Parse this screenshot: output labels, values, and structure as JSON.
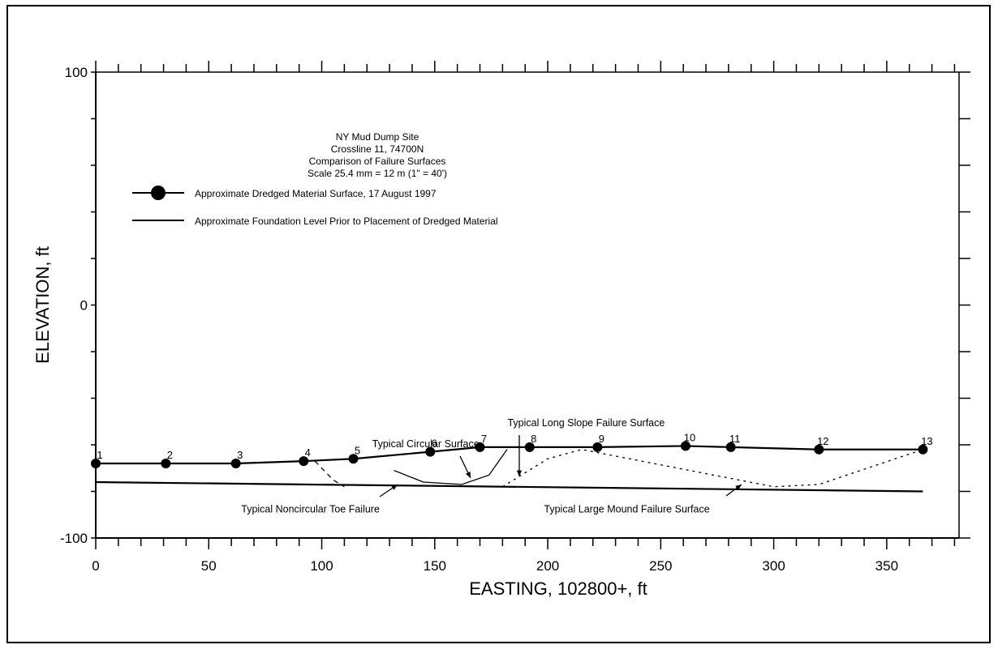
{
  "chart_data": {
    "type": "line",
    "title_lines": [
      "NY Mud Dump Site",
      "Crossline 11, 74700N",
      "Comparison of Failure Surfaces",
      "Scale 25.4 mm = 12 m (1\" = 40')"
    ],
    "xlabel": "EASTING, 102800+,  ft",
    "ylabel": "ELEVATION, ft",
    "xlim": [
      0,
      382
    ],
    "ylim": [
      -100,
      100
    ],
    "xticks": [
      0,
      50,
      100,
      150,
      200,
      250,
      300,
      350
    ],
    "yticks": [
      -100,
      0,
      100
    ],
    "grid": false,
    "legend_position": "top-left",
    "series": [
      {
        "name": "Approximate Dredged Material Surface, 17 August 1997",
        "marker": "circle",
        "point_labels": [
          "1",
          "2",
          "3",
          "4",
          "5",
          "6",
          "7",
          "8",
          "9",
          "10",
          "11",
          "12",
          "13"
        ],
        "x": [
          0,
          31,
          62,
          92,
          114,
          148,
          170,
          192,
          222,
          261,
          281,
          320,
          366
        ],
        "y": [
          -68,
          -68,
          -68,
          -67,
          -66,
          -63,
          -61,
          -61,
          -61,
          -60.5,
          -61,
          -62,
          -62
        ]
      },
      {
        "name": "Approximate Foundation Level Prior to Placement of Dredged Material",
        "marker": "none",
        "x": [
          0,
          366
        ],
        "y": [
          -76,
          -80
        ]
      }
    ],
    "failure_surfaces": [
      {
        "name": "Typical Noncircular Toe Failure",
        "x": [
          97,
          105,
          110
        ],
        "y": [
          -67,
          -75,
          -78
        ]
      },
      {
        "name": "Typical Circular Surface",
        "x": [
          132,
          145,
          162,
          174,
          182
        ],
        "y": [
          -71,
          -76,
          -77,
          -73,
          -62
        ]
      },
      {
        "name": "Typical Long Slope Failure Surface",
        "x": [
          180,
          200,
          215,
          300,
          320,
          366
        ],
        "y": [
          -78,
          -66,
          -62,
          -78,
          -77,
          -62
        ]
      }
    ],
    "annotations": [
      {
        "text": "Typical Long Slope Failure Surface",
        "x": 217,
        "y": -52
      },
      {
        "text": "Typical Circular Surface",
        "x": 146,
        "y": -61
      },
      {
        "text": "Typical Noncircular Toe Failure",
        "x": 95,
        "y": -89
      },
      {
        "text": "Typical Large Mound Failure Surface",
        "x": 235,
        "y": -89
      }
    ],
    "colors": {
      "line": "#000000",
      "background": "#ffffff"
    }
  }
}
